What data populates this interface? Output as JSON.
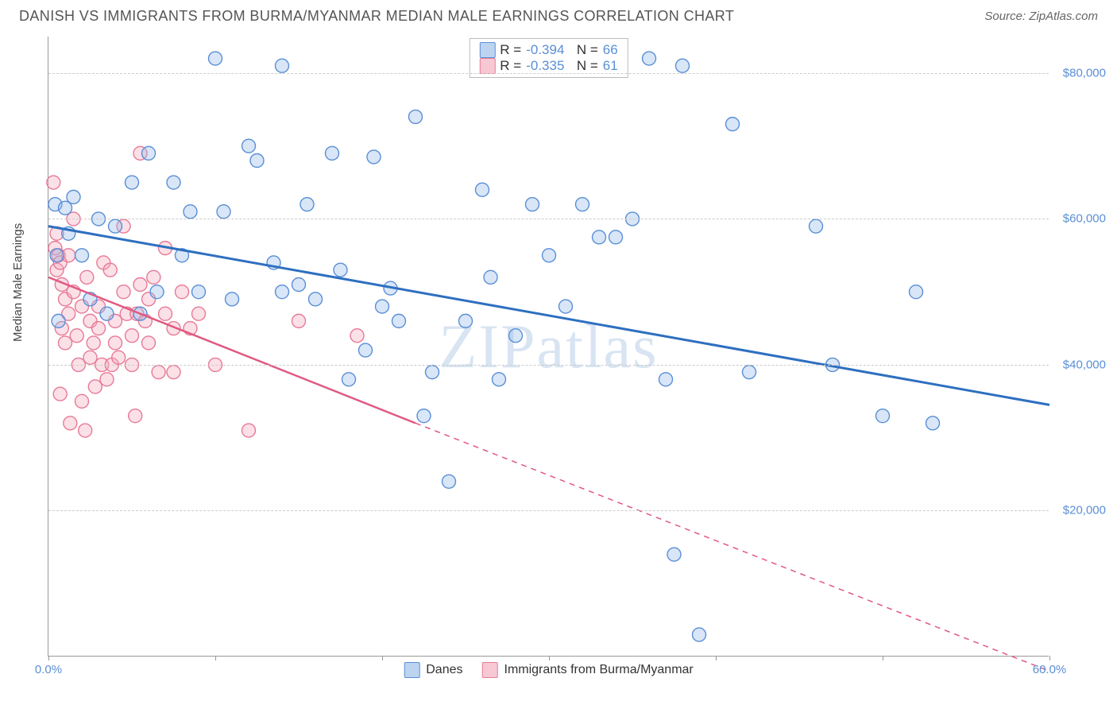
{
  "header": {
    "title": "DANISH VS IMMIGRANTS FROM BURMA/MYANMAR MEDIAN MALE EARNINGS CORRELATION CHART",
    "source_prefix": "Source: ",
    "source": "ZipAtlas.com"
  },
  "chart": {
    "type": "scatter",
    "ylabel": "Median Male Earnings",
    "xlim": [
      0,
      60
    ],
    "ylim": [
      0,
      85000
    ],
    "x_tick_start": "0.0%",
    "x_tick_end": "60.0%",
    "x_tick_positions": [
      0,
      10,
      20,
      30,
      40,
      50,
      60
    ],
    "y_gridlines": [
      20000,
      40000,
      60000,
      80000
    ],
    "y_tick_labels": [
      "$20,000",
      "$40,000",
      "$60,000",
      "$80,000"
    ],
    "background_color": "#ffffff",
    "grid_color": "#cccccc",
    "axis_color": "#999999",
    "tick_label_color": "#5a8fd6",
    "watermark": "ZIPatlas",
    "marker_radius": 8.5,
    "marker_fill_opacity": 0.35,
    "marker_stroke_width": 1.4,
    "series": {
      "danes": {
        "label": "Danes",
        "color_fill": "#8fb8e8",
        "color_stroke": "#5a8fd6",
        "line_color": "#2e6fc0",
        "line_width": 3,
        "R": "-0.394",
        "N": "66",
        "trend": {
          "x1": 0,
          "y1": 59000,
          "x2": 60,
          "y2": 34500
        },
        "data": [
          [
            0.4,
            62000
          ],
          [
            0.5,
            55000
          ],
          [
            0.6,
            46000
          ],
          [
            1,
            61500
          ],
          [
            1.2,
            58000
          ],
          [
            1.5,
            63000
          ],
          [
            2,
            55000
          ],
          [
            2.5,
            49000
          ],
          [
            3,
            60000
          ],
          [
            3.5,
            47000
          ],
          [
            4,
            59000
          ],
          [
            5,
            65000
          ],
          [
            5.5,
            47000
          ],
          [
            6,
            69000
          ],
          [
            6.5,
            50000
          ],
          [
            7.5,
            65000
          ],
          [
            8,
            55000
          ],
          [
            8.5,
            61000
          ],
          [
            9,
            50000
          ],
          [
            10,
            82000
          ],
          [
            10.5,
            61000
          ],
          [
            11,
            49000
          ],
          [
            12,
            70000
          ],
          [
            12.5,
            68000
          ],
          [
            13.5,
            54000
          ],
          [
            14,
            50000
          ],
          [
            14,
            81000
          ],
          [
            15,
            51000
          ],
          [
            15.5,
            62000
          ],
          [
            16,
            49000
          ],
          [
            17,
            69000
          ],
          [
            17.5,
            53000
          ],
          [
            18,
            38000
          ],
          [
            19,
            42000
          ],
          [
            19.5,
            68500
          ],
          [
            20,
            48000
          ],
          [
            20.5,
            50500
          ],
          [
            21,
            46000
          ],
          [
            22,
            74000
          ],
          [
            22.5,
            33000
          ],
          [
            23,
            39000
          ],
          [
            24,
            24000
          ],
          [
            25,
            46000
          ],
          [
            26,
            64000
          ],
          [
            26.5,
            52000
          ],
          [
            27,
            38000
          ],
          [
            28,
            44000
          ],
          [
            29,
            62000
          ],
          [
            30,
            55000
          ],
          [
            31,
            48000
          ],
          [
            32,
            62000
          ],
          [
            33,
            57500
          ],
          [
            34,
            57500
          ],
          [
            35,
            60000
          ],
          [
            36,
            82000
          ],
          [
            37,
            38000
          ],
          [
            37.5,
            14000
          ],
          [
            38,
            81000
          ],
          [
            39,
            3000
          ],
          [
            41,
            73000
          ],
          [
            42,
            39000
          ],
          [
            46,
            59000
          ],
          [
            47,
            40000
          ],
          [
            50,
            33000
          ],
          [
            52,
            50000
          ],
          [
            53,
            32000
          ]
        ]
      },
      "immigrants": {
        "label": "Immigrants from Burma/Myanmar",
        "color_fill": "#f4a7ba",
        "color_stroke": "#e77a97",
        "line_color": "#e05a82",
        "line_width": 2.5,
        "R": "-0.335",
        "N": "61",
        "trend_solid": {
          "x1": 0,
          "y1": 52000,
          "x2": 22,
          "y2": 32000
        },
        "trend_dash": {
          "x1": 22,
          "y1": 32000,
          "x2": 60,
          "y2": -2000
        },
        "data": [
          [
            0.3,
            65000
          ],
          [
            0.4,
            56000
          ],
          [
            0.5,
            58000
          ],
          [
            0.5,
            53000
          ],
          [
            0.6,
            55000
          ],
          [
            0.7,
            54000
          ],
          [
            0.7,
            36000
          ],
          [
            0.8,
            51000
          ],
          [
            0.8,
            45000
          ],
          [
            1,
            43000
          ],
          [
            1,
            49000
          ],
          [
            1.2,
            55000
          ],
          [
            1.2,
            47000
          ],
          [
            1.3,
            32000
          ],
          [
            1.5,
            60000
          ],
          [
            1.5,
            50000
          ],
          [
            1.7,
            44000
          ],
          [
            1.8,
            40000
          ],
          [
            2,
            35000
          ],
          [
            2,
            48000
          ],
          [
            2.2,
            31000
          ],
          [
            2.3,
            52000
          ],
          [
            2.5,
            46000
          ],
          [
            2.5,
            41000
          ],
          [
            2.7,
            43000
          ],
          [
            2.8,
            37000
          ],
          [
            3,
            45000
          ],
          [
            3,
            48000
          ],
          [
            3.2,
            40000
          ],
          [
            3.3,
            54000
          ],
          [
            3.5,
            38000
          ],
          [
            3.7,
            53000
          ],
          [
            3.8,
            40000
          ],
          [
            4,
            46000
          ],
          [
            4,
            43000
          ],
          [
            4.2,
            41000
          ],
          [
            4.5,
            59000
          ],
          [
            4.5,
            50000
          ],
          [
            4.7,
            47000
          ],
          [
            5,
            40000
          ],
          [
            5,
            44000
          ],
          [
            5.2,
            33000
          ],
          [
            5.3,
            47000
          ],
          [
            5.5,
            51000
          ],
          [
            5.5,
            69000
          ],
          [
            5.8,
            46000
          ],
          [
            6,
            49000
          ],
          [
            6,
            43000
          ],
          [
            6.3,
            52000
          ],
          [
            6.6,
            39000
          ],
          [
            7,
            47000
          ],
          [
            7,
            56000
          ],
          [
            7.5,
            45000
          ],
          [
            7.5,
            39000
          ],
          [
            8,
            50000
          ],
          [
            8.5,
            45000
          ],
          [
            9,
            47000
          ],
          [
            10,
            40000
          ],
          [
            12,
            31000
          ],
          [
            15,
            46000
          ],
          [
            18.5,
            44000
          ]
        ]
      }
    },
    "legend_bottom": {
      "items": [
        "Danes",
        "Immigrants from Burma/Myanmar"
      ]
    }
  }
}
